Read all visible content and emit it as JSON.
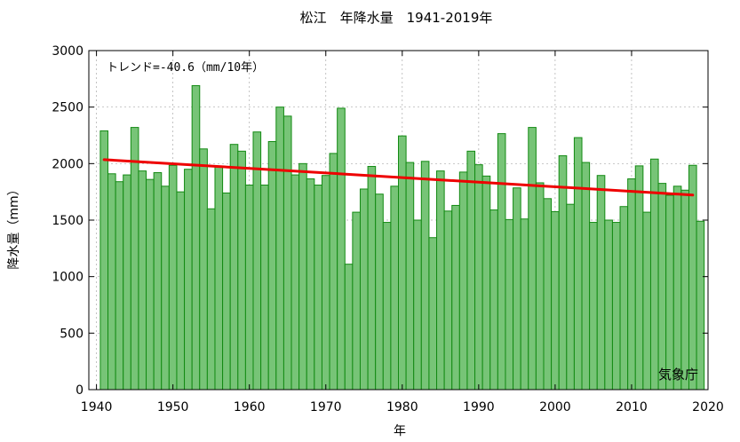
{
  "chart_data": {
    "type": "bar",
    "title": "松江　年降水量　1941-2019年",
    "xlabel": "年",
    "ylabel": "降水量（mm）",
    "trend_label": "トレンド=-40.6（mm/10年）",
    "source_label": "気象庁",
    "xlim": [
      1939,
      2020
    ],
    "ylim": [
      0,
      3000
    ],
    "x_ticks": [
      1940,
      1950,
      1960,
      1970,
      1980,
      1990,
      2000,
      2010,
      2020
    ],
    "y_ticks": [
      0,
      500,
      1000,
      1500,
      2000,
      2500,
      3000
    ],
    "years": [
      1941,
      1942,
      1943,
      1944,
      1945,
      1946,
      1947,
      1948,
      1949,
      1950,
      1951,
      1952,
      1953,
      1954,
      1955,
      1956,
      1957,
      1958,
      1959,
      1960,
      1961,
      1962,
      1963,
      1964,
      1965,
      1966,
      1967,
      1968,
      1969,
      1970,
      1971,
      1972,
      1973,
      1974,
      1975,
      1976,
      1977,
      1978,
      1979,
      1980,
      1981,
      1982,
      1983,
      1984,
      1985,
      1986,
      1987,
      1988,
      1989,
      1990,
      1991,
      1992,
      1993,
      1994,
      1995,
      1996,
      1997,
      1998,
      1999,
      2000,
      2001,
      2002,
      2003,
      2004,
      2005,
      2006,
      2007,
      2008,
      2009,
      2010,
      2011,
      2012,
      2013,
      2014,
      2015,
      2016,
      2017,
      2018,
      2019
    ],
    "values": [
      2290,
      1910,
      1840,
      1900,
      2320,
      1935,
      1860,
      1920,
      1800,
      1985,
      1750,
      1950,
      2690,
      2130,
      1600,
      1970,
      1740,
      2170,
      2110,
      1810,
      2280,
      1810,
      2195,
      2500,
      2420,
      1900,
      2000,
      1865,
      1810,
      1895,
      2090,
      2490,
      1110,
      1570,
      1775,
      1975,
      1730,
      1480,
      1800,
      2245,
      2010,
      1500,
      2020,
      1345,
      1935,
      1580,
      1630,
      1925,
      2110,
      1990,
      1890,
      1590,
      2265,
      1505,
      1785,
      1510,
      2320,
      1830,
      1690,
      1575,
      2070,
      1640,
      2230,
      2010,
      1480,
      1895,
      1500,
      1480,
      1620,
      1865,
      1980,
      1570,
      2040,
      1825,
      1720,
      1800,
      1765,
      1985,
      1490
    ],
    "trend": {
      "x": [
        1941,
        2018
      ],
      "y": [
        2035,
        1722
      ],
      "color": "#ee0000"
    },
    "bar_color": "#77c477",
    "bar_edge_color": "#138a13"
  }
}
